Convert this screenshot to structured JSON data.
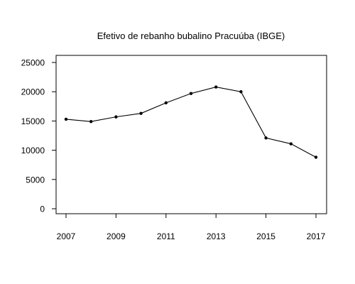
{
  "chart_data": {
    "type": "line",
    "title": "Efetivo de rebanho bubalino Pracuúba (IBGE)",
    "xlabel": "",
    "ylabel": "",
    "x": [
      2007,
      2008,
      2009,
      2010,
      2011,
      2012,
      2013,
      2014,
      2015,
      2016,
      2017
    ],
    "series": [
      {
        "values": [
          15300,
          14900,
          15700,
          16300,
          18100,
          19700,
          20800,
          20000,
          12100,
          11100,
          8800
        ]
      }
    ],
    "xlim": [
      2007,
      2017
    ],
    "ylim": [
      0,
      25000
    ],
    "x_ticks": [
      2007,
      2009,
      2011,
      2013,
      2015,
      2017
    ],
    "x_tick_labels": [
      "2007",
      "2009",
      "2011",
      "2013",
      "2015",
      "2017"
    ],
    "y_ticks": [
      0,
      5000,
      10000,
      15000,
      20000,
      25000
    ],
    "y_tick_labels": [
      "0",
      "5000",
      "10000",
      "15000",
      "20000",
      "25000"
    ],
    "grid": false,
    "legend": "none",
    "line_color": "#000000"
  }
}
